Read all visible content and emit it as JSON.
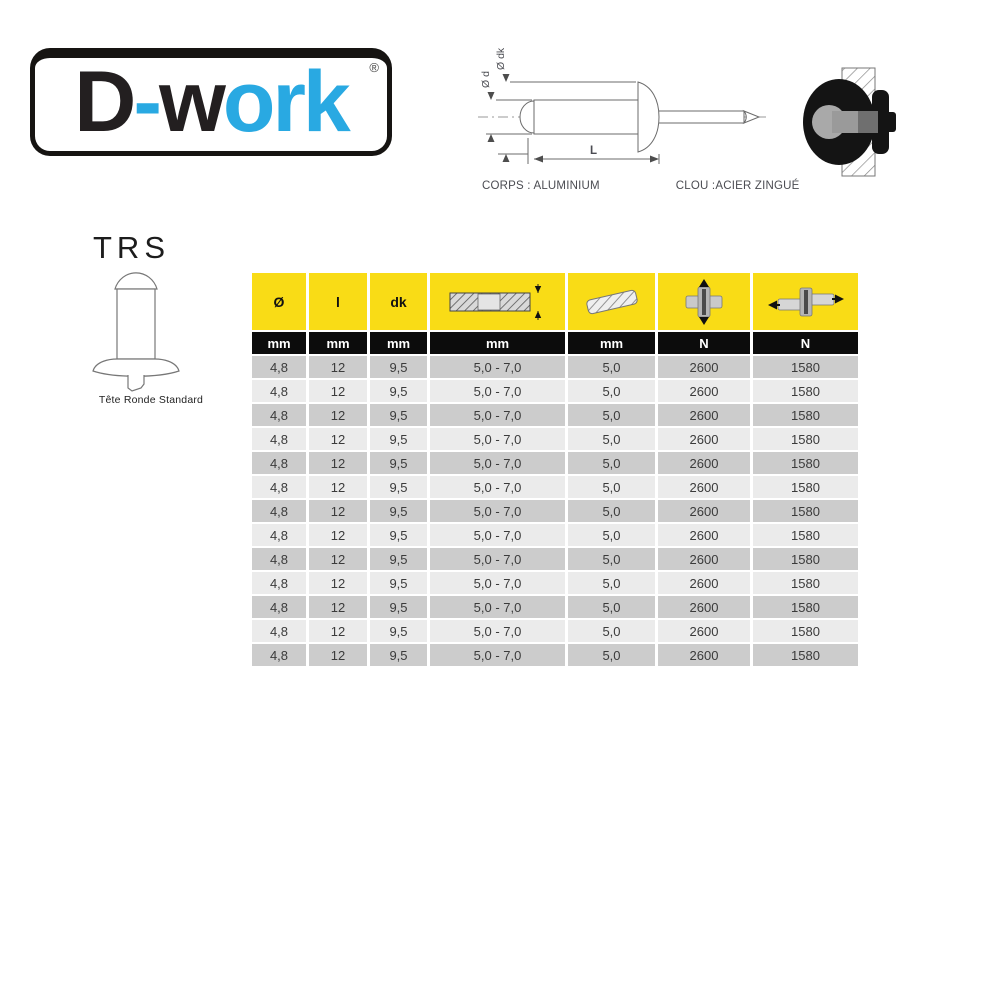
{
  "logo": {
    "d": "D",
    "dash": "-",
    "w": "w",
    "ork": "ork",
    "registered": "®"
  },
  "materials": {
    "body": "CORPS : ALUMINIUM",
    "nail": "CLOU :ACIER ZINGUÉ"
  },
  "diagram_labels": {
    "d": "Ø d",
    "dk": "Ø dk",
    "L": "L"
  },
  "product": {
    "code": "TRS",
    "caption": "Tête Ronde Standard"
  },
  "table": {
    "columns": [
      {
        "symbol": "Ø",
        "icon": "",
        "unit": "mm"
      },
      {
        "symbol": "l",
        "icon": "",
        "unit": "mm"
      },
      {
        "symbol": "dk",
        "icon": "",
        "unit": "mm"
      },
      {
        "symbol": "",
        "icon": "clamping-range-icon",
        "unit": "mm"
      },
      {
        "symbol": "",
        "icon": "drill-diameter-icon",
        "unit": "mm"
      },
      {
        "symbol": "",
        "icon": "tensile-strength-icon",
        "unit": "N"
      },
      {
        "symbol": "",
        "icon": "shear-strength-icon",
        "unit": "N"
      }
    ],
    "rows": [
      [
        "4,8",
        "12",
        "9,5",
        "5,0 - 7,0",
        "5,0",
        "2600",
        "1580"
      ],
      [
        "4,8",
        "12",
        "9,5",
        "5,0 - 7,0",
        "5,0",
        "2600",
        "1580"
      ],
      [
        "4,8",
        "12",
        "9,5",
        "5,0 - 7,0",
        "5,0",
        "2600",
        "1580"
      ],
      [
        "4,8",
        "12",
        "9,5",
        "5,0 - 7,0",
        "5,0",
        "2600",
        "1580"
      ],
      [
        "4,8",
        "12",
        "9,5",
        "5,0 - 7,0",
        "5,0",
        "2600",
        "1580"
      ],
      [
        "4,8",
        "12",
        "9,5",
        "5,0 - 7,0",
        "5,0",
        "2600",
        "1580"
      ],
      [
        "4,8",
        "12",
        "9,5",
        "5,0 - 7,0",
        "5,0",
        "2600",
        "1580"
      ],
      [
        "4,8",
        "12",
        "9,5",
        "5,0 - 7,0",
        "5,0",
        "2600",
        "1580"
      ],
      [
        "4,8",
        "12",
        "9,5",
        "5,0 - 7,0",
        "5,0",
        "2600",
        "1580"
      ],
      [
        "4,8",
        "12",
        "9,5",
        "5,0 - 7,0",
        "5,0",
        "2600",
        "1580"
      ],
      [
        "4,8",
        "12",
        "9,5",
        "5,0 - 7,0",
        "5,0",
        "2600",
        "1580"
      ],
      [
        "4,8",
        "12",
        "9,5",
        "5,0 - 7,0",
        "5,0",
        "2600",
        "1580"
      ],
      [
        "4,8",
        "12",
        "9,5",
        "5,0 - 7,0",
        "5,0",
        "2600",
        "1580"
      ]
    ]
  },
  "colors": {
    "accent_yellow": "#f9dc16",
    "header_black": "#0c0c0c",
    "row_dark": "#cccccc",
    "row_light": "#ebebeb",
    "logo_blue": "#29a9e2",
    "logo_black": "#231f20"
  }
}
